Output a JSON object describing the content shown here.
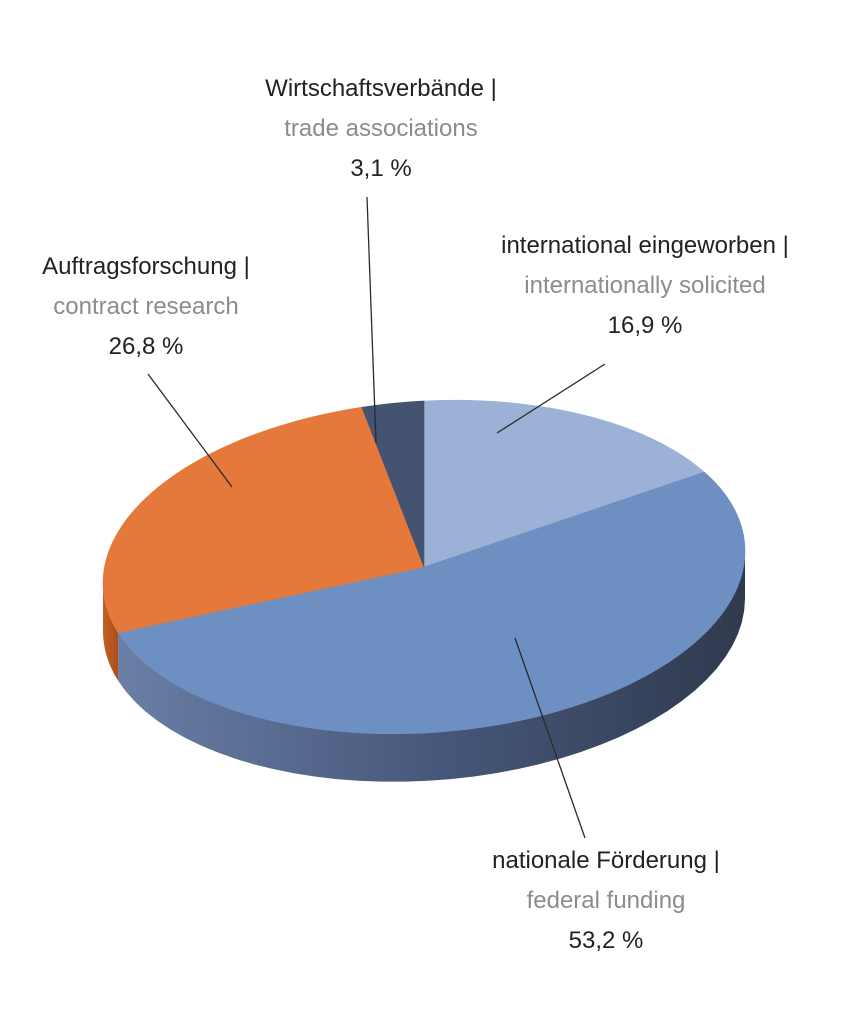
{
  "chart_data": {
    "type": "pie",
    "three_d": true,
    "start_at": "top",
    "direction": "clockwise",
    "slices": [
      {
        "label_de": "international eingeworben |",
        "label_en": "internationally solicited",
        "value": 16.9,
        "value_text": "16,9 %",
        "color": "#9bb2d6"
      },
      {
        "label_de": "nationale Förderung |",
        "label_en": "federal funding",
        "value": 53.2,
        "value_text": "53,2 %",
        "color": "#6e8fc1"
      },
      {
        "label_de": "Auftragsforschung |",
        "label_en": "contract research",
        "value": 26.8,
        "value_text": "26,8 %",
        "color": "#e5793c"
      },
      {
        "label_de": "Wirtschaftsverbände |",
        "label_en": "trade associations",
        "value": 3.1,
        "value_text": "3,1 %",
        "color": "#445372"
      }
    ]
  }
}
